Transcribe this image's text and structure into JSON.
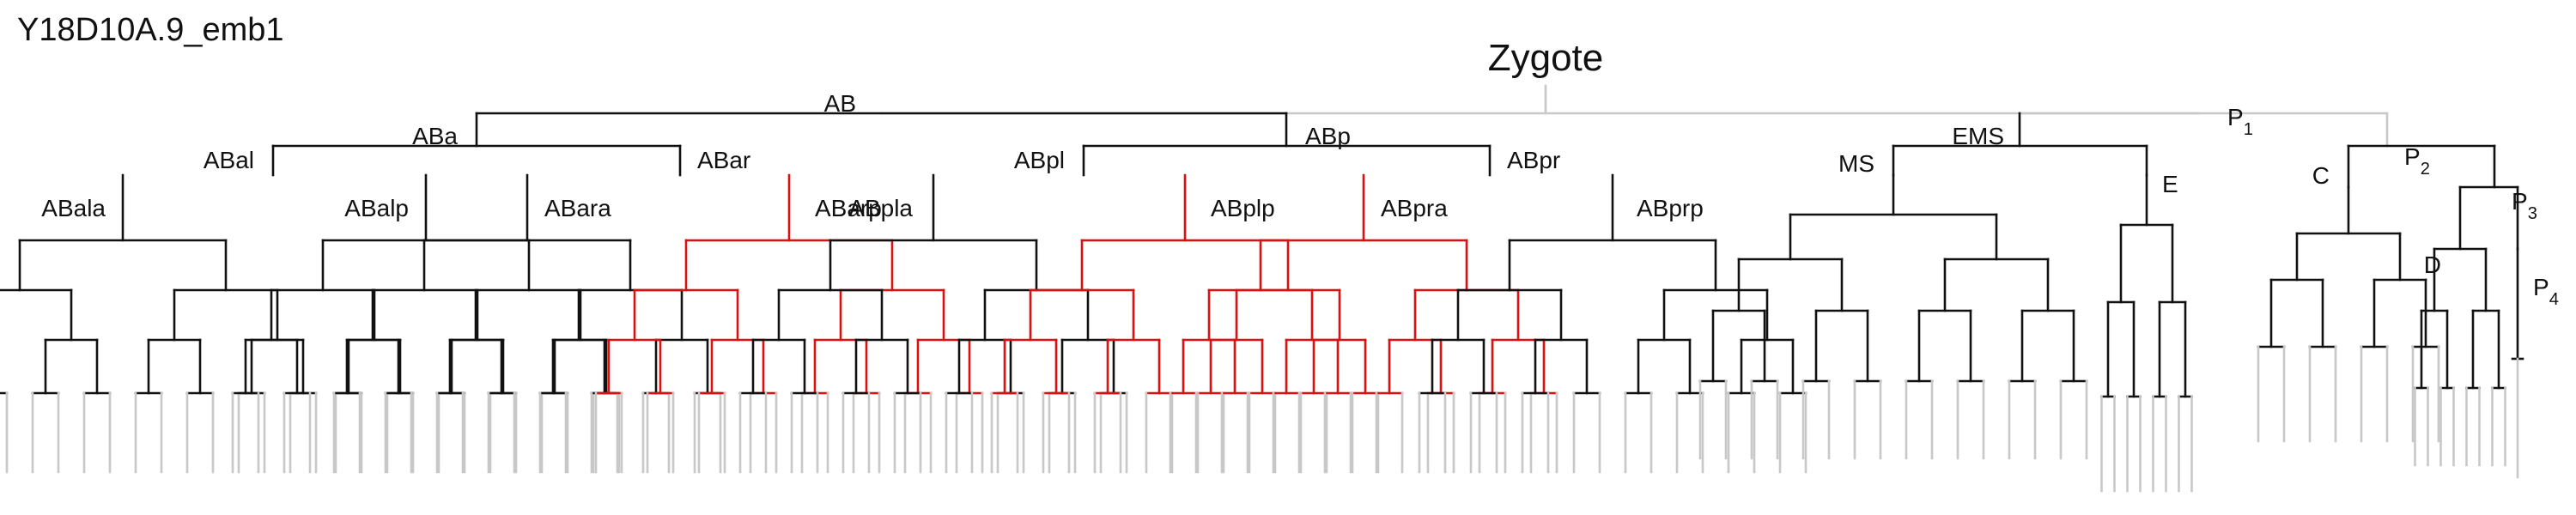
{
  "title": "Y18D10A.9_emb1",
  "colors": {
    "normal": "#111111",
    "highlight": "#dd1111",
    "unscored": "#c8c8c8"
  },
  "root": "Zygote",
  "nodes": [
    {
      "id": "AB",
      "label": "AB"
    },
    {
      "id": "P1",
      "label": "P",
      "sub": "1"
    },
    {
      "id": "ABa",
      "label": "ABa"
    },
    {
      "id": "ABp",
      "label": "ABp"
    },
    {
      "id": "EMS",
      "label": "EMS"
    },
    {
      "id": "P2",
      "label": "P",
      "sub": "2"
    },
    {
      "id": "ABal",
      "label": "ABal"
    },
    {
      "id": "ABar",
      "label": "ABar"
    },
    {
      "id": "ABpl",
      "label": "ABpl"
    },
    {
      "id": "ABpr",
      "label": "ABpr"
    },
    {
      "id": "MS",
      "label": "MS"
    },
    {
      "id": "E",
      "label": "E"
    },
    {
      "id": "C",
      "label": "C"
    },
    {
      "id": "P3",
      "label": "P",
      "sub": "3"
    },
    {
      "id": "ABala",
      "label": "ABala"
    },
    {
      "id": "ABalp",
      "label": "ABalp"
    },
    {
      "id": "ABara",
      "label": "ABara"
    },
    {
      "id": "ABarp",
      "label": "ABarp"
    },
    {
      "id": "ABpla",
      "label": "ABpla"
    },
    {
      "id": "ABplp",
      "label": "ABplp"
    },
    {
      "id": "ABpra",
      "label": "ABpra"
    },
    {
      "id": "ABprp",
      "label": "ABprp"
    },
    {
      "id": "D",
      "label": "D"
    },
    {
      "id": "P4",
      "label": "P",
      "sub": "4"
    }
  ],
  "highlighted_lineages": [
    "ABarp",
    "ABplp",
    "ABpra"
  ]
}
